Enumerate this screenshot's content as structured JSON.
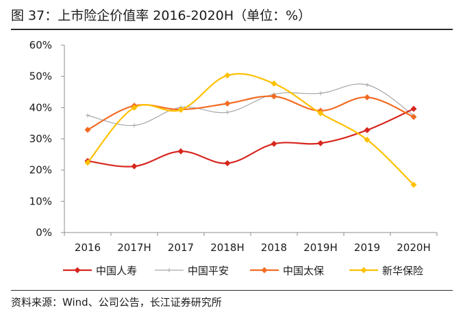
{
  "header": {
    "title": "图 37：上市险企价值率 2016-2020H（单位：%）"
  },
  "footer": {
    "source": "资料来源：Wind、公司公告，长江证券研究所"
  },
  "chart_data": {
    "type": "line",
    "title": "图 37：上市险企价值率 2016-2020H（单位：%）",
    "xlabel": "",
    "ylabel": "",
    "categories": [
      "2016",
      "2017H",
      "2017",
      "2018H",
      "2018",
      "2019H",
      "2019",
      "2020H"
    ],
    "ylim": [
      0,
      60
    ],
    "yticks": [
      0,
      10,
      20,
      30,
      40,
      50,
      60
    ],
    "ytick_labels": [
      "0%",
      "10%",
      "20%",
      "30%",
      "40%",
      "50%",
      "60%"
    ],
    "grid": false,
    "legend_position": "bottom",
    "series": [
      {
        "name": "中国人寿",
        "color": "#d7261e",
        "values": [
          22.9,
          21.2,
          26.0,
          22.2,
          28.4,
          28.6,
          32.8,
          39.6
        ]
      },
      {
        "name": "中国平安",
        "color": "#a6a6a6",
        "values": [
          37.5,
          34.3,
          40.1,
          38.5,
          44.3,
          44.6,
          47.3,
          37.5
        ]
      },
      {
        "name": "中国太保",
        "color": "#f26b21",
        "values": [
          32.9,
          40.6,
          39.4,
          41.3,
          43.6,
          39.0,
          43.3,
          37.0
        ]
      },
      {
        "name": "新华保险",
        "color": "#ffc000",
        "values": [
          22.4,
          40.0,
          39.3,
          50.3,
          47.7,
          38.2,
          29.7,
          15.3
        ]
      }
    ]
  }
}
